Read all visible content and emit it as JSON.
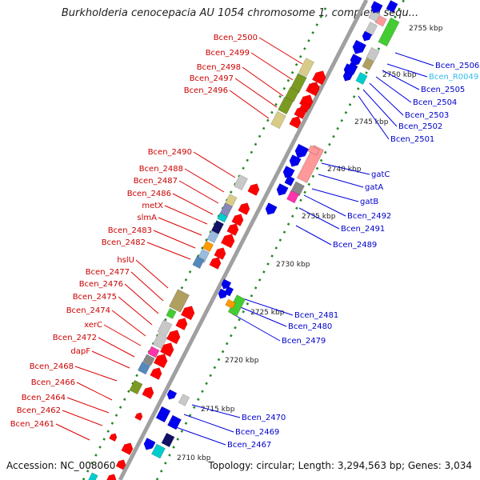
{
  "title": "Burkholderia cenocepacia AU 1054 chromosome 1, complete sequ...",
  "footer": {
    "accession": "Accession: NC_008060",
    "topology": "Topology: circular; Length: 3,294,563 bp; Genes: 3,034"
  },
  "colors": {
    "left_label": "#cc0000",
    "right_label": "#0000cc",
    "rna_label": "#33bbee",
    "backbone": "#999999",
    "tick_dots": "#229922",
    "forward_arrow": "#ff0000",
    "reverse_arrow": "#0000ee",
    "olive": "#7a9a22",
    "khaki": "#d8cc88",
    "tan": "#b0a060",
    "lime": "#44cc33",
    "silver": "#c8c8c8",
    "steel": "#5588bb",
    "lightblue": "#99bbdd",
    "gray": "#888888",
    "navy": "#111166",
    "orange": "#ff9900",
    "pink": "#ff33aa",
    "salmon": "#ff9999",
    "cyan": "#00cccc",
    "purple": "#8888bb"
  },
  "scale": [
    {
      "label": "2755 kbp"
    },
    {
      "label": "2750 kbp"
    },
    {
      "label": "2745 kbp"
    },
    {
      "label": "2740 kbp"
    },
    {
      "label": "2735 kbp"
    },
    {
      "label": "2730 kbp"
    },
    {
      "label": "2725 kbp"
    },
    {
      "label": "2720 kbp"
    },
    {
      "label": "2715 kbp"
    },
    {
      "label": "2710 kbp"
    }
  ],
  "left_genes": [
    "Bcen_2500",
    "Bcen_2499",
    "Bcen_2498",
    "Bcen_2497",
    "Bcen_2496",
    "Bcen_2490",
    "Bcen_2488",
    "Bcen_2487",
    "Bcen_2486",
    "metX",
    "slmA",
    "Bcen_2483",
    "Bcen_2482",
    "hslU",
    "Bcen_2477",
    "Bcen_2476",
    "Bcen_2475",
    "Bcen_2474",
    "xerC",
    "Bcen_2472",
    "dapF",
    "Bcen_2468",
    "Bcen_2466",
    "Bcen_2464",
    "Bcen_2462",
    "Bcen_2461"
  ],
  "right_genes": [
    "Bcen_2506",
    "Bcen_R0049",
    "Bcen_2505",
    "Bcen_2504",
    "Bcen_2503",
    "Bcen_2502",
    "Bcen_2501",
    "gatC",
    "gatA",
    "gatB",
    "Bcen_2492",
    "Bcen_2491",
    "Bcen_2489",
    "Bcen_2481",
    "Bcen_2480",
    "Bcen_2479",
    "Bcen_2470",
    "Bcen_2469",
    "Bcen_2467"
  ],
  "rna_genes": [
    "Bcen_R0049"
  ]
}
